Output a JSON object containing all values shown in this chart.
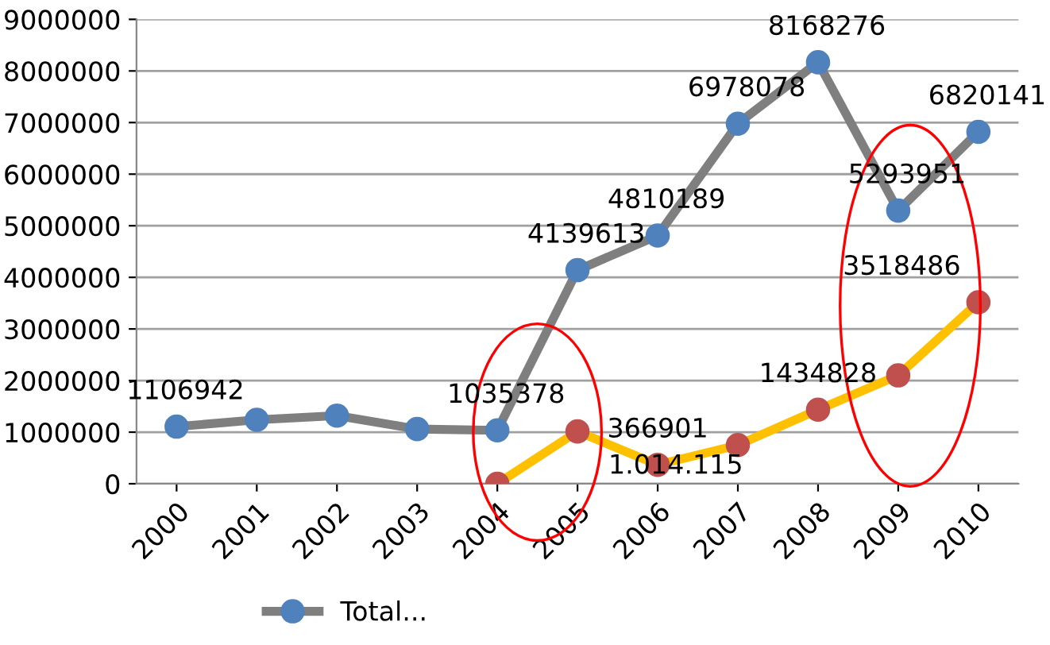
{
  "chart_data": {
    "type": "line",
    "categories": [
      "2000",
      "2001",
      "2002",
      "2003",
      "2004",
      "2005",
      "2006",
      "2007",
      "2008",
      "2009",
      "2010"
    ],
    "series": [
      {
        "name": "Total...",
        "color": "#7f7f7f",
        "values": [
          1106942,
          1240000,
          1320000,
          1060000,
          1035378,
          4139613,
          4810189,
          6978078,
          8168276,
          5293951,
          6820141
        ],
        "value_labels": [
          "1106942",
          null,
          null,
          null,
          "1035378",
          "4139613",
          "4810189",
          "6978078",
          "8168276",
          "5293951",
          "6820141"
        ]
      },
      {
        "color": "#ffc000",
        "values": [
          null,
          null,
          null,
          null,
          0,
          1014115,
          366901,
          750000,
          1434828,
          2100000,
          3518486
        ],
        "value_labels": [
          null,
          null,
          null,
          null,
          null,
          "1.014.115",
          "366901",
          null,
          "1434828",
          null,
          "3518486"
        ]
      }
    ],
    "ylim": [
      0,
      9000000
    ],
    "yticks": [
      0,
      1000000,
      2000000,
      3000000,
      4000000,
      5000000,
      6000000,
      7000000,
      8000000,
      9000000
    ],
    "grid": "y",
    "legend": "bottom",
    "marker": "circle",
    "line_style": "solid"
  }
}
